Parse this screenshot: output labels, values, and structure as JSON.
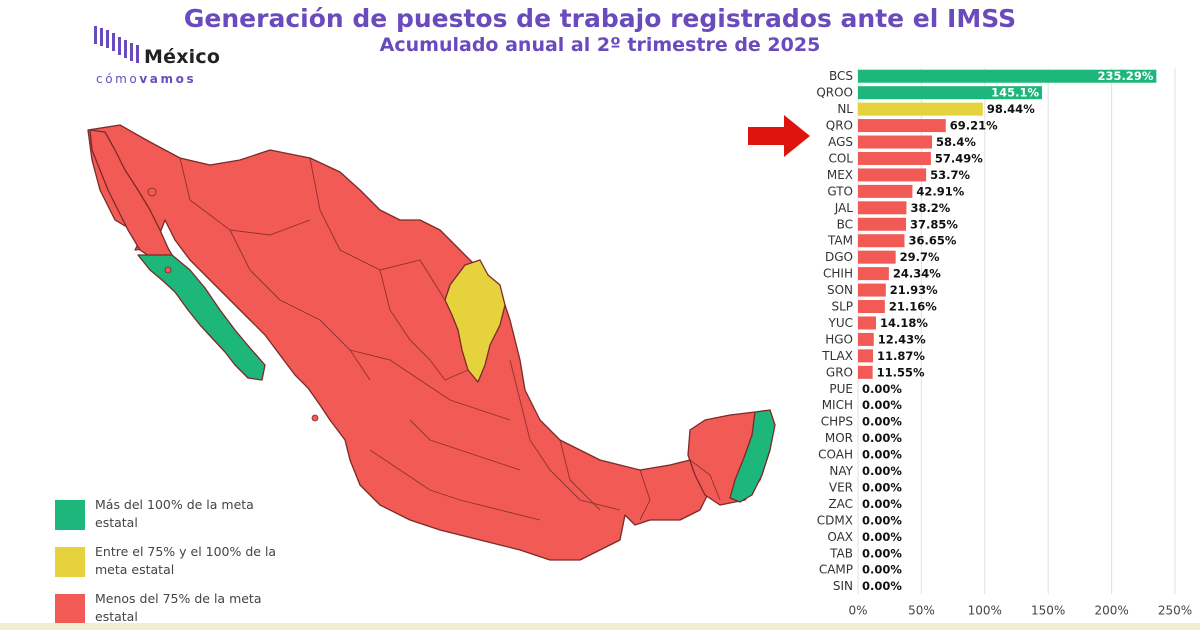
{
  "header": {
    "title": "Generación de puestos de trabajo registrados ante el IMSS",
    "subtitle": "Acumulado anual al 2º trimestre de 2025"
  },
  "logo": {
    "main": "México",
    "sub_light": "cómo",
    "sub_bold": "vamos"
  },
  "legend": [
    {
      "label": "Más del 100% de la meta estatal",
      "color": "#1db67b"
    },
    {
      "label": "Entre el 75% y el 100% de la meta estatal",
      "color": "#e6d23c"
    },
    {
      "label": "Menos del 75% de la meta estatal",
      "color": "#f25a55"
    }
  ],
  "colors": {
    "green": "#1db67b",
    "yellow": "#e6d23c",
    "red": "#f25a55",
    "title": "#6a4bbd",
    "arrow": "#e0140e"
  },
  "chart_data": {
    "type": "bar",
    "orientation": "horizontal",
    "categories": [
      "BCS",
      "QROO",
      "NL",
      "QRO",
      "AGS",
      "COL",
      "MEX",
      "GTO",
      "JAL",
      "BC",
      "TAM",
      "DGO",
      "CHIH",
      "SON",
      "SLP",
      "YUC",
      "HGO",
      "TLAX",
      "GRO",
      "PUE",
      "MICH",
      "CHPS",
      "MOR",
      "COAH",
      "NAY",
      "VER",
      "ZAC",
      "CDMX",
      "OAX",
      "TAB",
      "CAMP",
      "SIN"
    ],
    "values": [
      235.29,
      145.1,
      98.44,
      69.21,
      58.4,
      57.49,
      53.7,
      42.91,
      38.2,
      37.85,
      36.65,
      29.7,
      24.34,
      21.93,
      21.16,
      14.18,
      12.43,
      11.87,
      11.55,
      0,
      0,
      0,
      0,
      0,
      0,
      0,
      0,
      0,
      0,
      0,
      0,
      0
    ],
    "value_labels": [
      "235.29%",
      "145.1%",
      "98.44%",
      "69.21%",
      "58.4%",
      "57.49%",
      "53.7%",
      "42.91%",
      "38.2%",
      "37.85%",
      "36.65%",
      "29.7%",
      "24.34%",
      "21.93%",
      "21.16%",
      "14.18%",
      "12.43%",
      "11.87%",
      "11.55%",
      "0.00%",
      "0.00%",
      "0.00%",
      "0.00%",
      "0.00%",
      "0.00%",
      "0.00%",
      "0.00%",
      "0.00%",
      "0.00%",
      "0.00%",
      "0.00%",
      "0.00%"
    ],
    "color_groups": [
      "green",
      "green",
      "yellow",
      "red",
      "red",
      "red",
      "red",
      "red",
      "red",
      "red",
      "red",
      "red",
      "red",
      "red",
      "red",
      "red",
      "red",
      "red",
      "red",
      "red",
      "red",
      "red",
      "red",
      "red",
      "red",
      "red",
      "red",
      "red",
      "red",
      "red",
      "red",
      "red"
    ],
    "xlim": [
      0,
      250
    ],
    "xticks": [
      0,
      50,
      100,
      150,
      200,
      250
    ],
    "xtick_labels": [
      "0%",
      "50%",
      "100%",
      "150%",
      "200%",
      "250%"
    ],
    "grid": true,
    "highlighted_category": "QRO"
  }
}
